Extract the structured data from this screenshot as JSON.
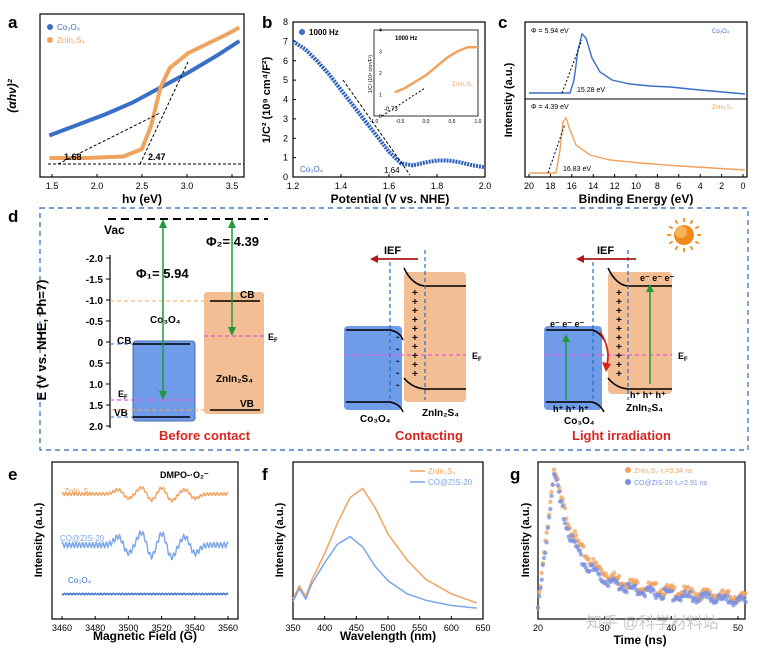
{
  "colors": {
    "blue": "#3a6fc8",
    "orange": "#f0a35e",
    "lightblue": "#7aa6e8",
    "lightorange": "#f6c9a0",
    "dash": "#5b8fc9",
    "red": "#d9231d",
    "magenta": "#e05ad6",
    "green": "#1e9a3a",
    "darkred": "#b01818",
    "boxblue": "#6f9be8",
    "boxorange": "#f3be93"
  },
  "panel_letters": {
    "a": "a",
    "b": "b",
    "c": "c",
    "d": "d",
    "e": "e",
    "f": "f",
    "g": "g"
  },
  "watermark": "知乎 @科学材料站",
  "chart_data": [
    {
      "id": "a",
      "type": "line",
      "xlabel": "hν (eV)",
      "ylabel": "(αhν)²",
      "xlim": [
        1.4,
        3.6
      ],
      "xticks": [
        "1.5",
        "2.0",
        "2.5",
        "3.0",
        "3.5"
      ],
      "series": [
        {
          "name": "Co₃O₄",
          "x": [
            1.5,
            1.8,
            2.1,
            2.4,
            2.7,
            3.0,
            3.3,
            3.55
          ],
          "y": [
            0.23,
            0.3,
            0.37,
            0.45,
            0.55,
            0.65,
            0.76,
            0.86
          ]
        },
        {
          "name": "ZnIn₂S₄",
          "x": [
            1.5,
            1.9,
            2.3,
            2.5,
            2.6,
            2.7,
            2.8,
            3.0,
            3.2,
            3.4,
            3.55
          ],
          "y": [
            0.08,
            0.08,
            0.09,
            0.14,
            0.3,
            0.55,
            0.68,
            0.78,
            0.84,
            0.9,
            0.95
          ]
        }
      ],
      "annotations": [
        "1.68",
        "2.47"
      ]
    },
    {
      "id": "b",
      "type": "line",
      "xlabel": "Potential (V vs. NHE)",
      "ylabel": "1/C² (10⁹ cm⁴/F²)",
      "xlim": [
        1.2,
        2.0
      ],
      "ylim": [
        0,
        8
      ],
      "xticks": [
        "1.2",
        "1.4",
        "1.6",
        "1.8",
        "2.0"
      ],
      "yticks": [
        "0",
        "1",
        "2",
        "3",
        "4",
        "5",
        "6",
        "7",
        "8"
      ],
      "legend": "1000 Hz",
      "label": "Co₃O₄",
      "annotation": "1.64",
      "series": [
        {
          "name": "Co₃O₄",
          "x": [
            1.2,
            1.25,
            1.3,
            1.35,
            1.4,
            1.45,
            1.5,
            1.55,
            1.6,
            1.65,
            1.7,
            1.75,
            1.8,
            1.85,
            1.9,
            1.95,
            2.0
          ],
          "y": [
            7.0,
            6.6,
            6.0,
            5.3,
            4.5,
            3.7,
            2.9,
            2.1,
            1.3,
            0.7,
            0.6,
            0.75,
            0.85,
            0.85,
            0.75,
            0.6,
            0.5
          ]
        }
      ],
      "inset": {
        "legend": "1000 Hz",
        "label": "ZnIn₂S₄",
        "annotation": "-0.73",
        "xticks": [
          "-1.0",
          "-0.5",
          "0.0",
          "0.5",
          "1.0"
        ],
        "yticks": [
          "0",
          "1",
          "2",
          "3",
          "4"
        ],
        "ylabel": "1/C² (10⁸ cm⁴/F²)",
        "series": [
          {
            "name": "ZnIn₂S₄",
            "x": [
              -0.6,
              -0.4,
              -0.2,
              0.0,
              0.2,
              0.4,
              0.6,
              0.8,
              1.0
            ],
            "y": [
              1.1,
              1.3,
              1.6,
              1.9,
              2.3,
              2.7,
              3.0,
              3.2,
              3.2
            ]
          }
        ]
      }
    },
    {
      "id": "c",
      "type": "line",
      "xlabel": "Binding Energy (eV)",
      "ylabel": "Intensity (a.u.)",
      "xticks": [
        "20",
        "18",
        "16",
        "14",
        "12",
        "10",
        "8",
        "6",
        "4",
        "2",
        "0"
      ],
      "series": [
        {
          "name": "Co₃O₄",
          "phi": "Φ = 5.94 eV",
          "cutoff": "15.28 eV"
        },
        {
          "name": "ZnIn₂S₄",
          "phi": "Φ = 4.39 eV",
          "cutoff": "16.83 eV"
        }
      ]
    },
    {
      "id": "d",
      "type": "diagram",
      "ylabel": "E (V vs. NHE, Ph=7)",
      "yticks": [
        "-2.0",
        "-1.5",
        "-1.0",
        "-0.5",
        "0",
        "0.5",
        "1.0",
        "1.5",
        "2.0"
      ],
      "vac": "Vac",
      "phi1": "Φ₁= 5.94",
      "phi2": "Φ₂= 4.39",
      "cb": "CB",
      "vb": "VB",
      "ef": "E",
      "ef_sub": "F",
      "co3o4": "Co₃O₄",
      "znin2s4": "ZnIn₂S₄",
      "ief": "IEF",
      "electrons": "e⁻ e⁻ e⁻",
      "holes": "h⁺ h⁺ h⁺",
      "stages": [
        "Before contact",
        "Contacting",
        "Light irradiation"
      ]
    },
    {
      "id": "e",
      "type": "line",
      "xlabel": "Magnetic Field (G)",
      "ylabel": "Intensity (a.u.)",
      "title": "DMPO-·O₂⁻",
      "xticks": [
        "3460",
        "3480",
        "3500",
        "3520",
        "3540",
        "3560"
      ],
      "series": [
        {
          "name": "ZnIn₂S₄"
        },
        {
          "name": "CO@ZIS-20"
        },
        {
          "name": "Co₃O₄"
        }
      ]
    },
    {
      "id": "f",
      "type": "line",
      "xlabel": "Wavelength (nm)",
      "ylabel": "Intensity (a.u.)",
      "xlim": [
        350,
        650
      ],
      "xticks": [
        "350",
        "400",
        "450",
        "500",
        "550",
        "600",
        "650"
      ],
      "series": [
        {
          "name": "ZnIn₂S₄",
          "x": [
            350,
            360,
            370,
            380,
            400,
            420,
            440,
            460,
            480,
            500,
            530,
            560,
            600,
            640
          ],
          "y": [
            0.1,
            0.2,
            0.12,
            0.25,
            0.45,
            0.68,
            0.88,
            0.95,
            0.8,
            0.6,
            0.4,
            0.25,
            0.14,
            0.07
          ]
        },
        {
          "name": "CO@ZIS-20",
          "x": [
            350,
            360,
            370,
            380,
            400,
            420,
            440,
            460,
            480,
            500,
            530,
            560,
            600,
            640
          ],
          "y": [
            0.08,
            0.18,
            0.1,
            0.22,
            0.38,
            0.52,
            0.58,
            0.5,
            0.35,
            0.24,
            0.14,
            0.09,
            0.05,
            0.03
          ]
        }
      ]
    },
    {
      "id": "g",
      "type": "scatter",
      "xlabel": "Time (ns)",
      "ylabel": "Intensity (a.u.)",
      "xticks": [
        "20",
        "30",
        "40",
        "50"
      ],
      "series": [
        {
          "name": "ZnIn₂S₄",
          "tau": "τ₁=3.34 ns"
        },
        {
          "name": "CO@ZIS-20",
          "tau": "τ₂=2.91 ns"
        }
      ]
    }
  ]
}
